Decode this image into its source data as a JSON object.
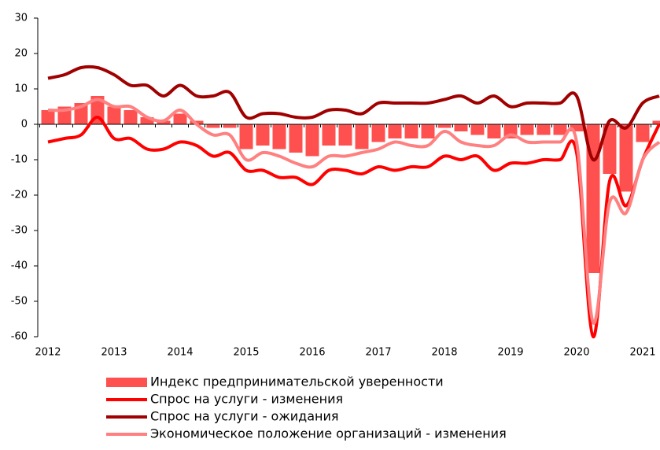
{
  "chart_data": {
    "type": "combo",
    "categories": [
      "2012",
      null,
      null,
      null,
      "2013",
      null,
      null,
      null,
      "2014",
      null,
      null,
      null,
      "2015",
      null,
      null,
      null,
      "2016",
      null,
      null,
      null,
      "2017",
      null,
      null,
      null,
      "2018",
      null,
      null,
      null,
      "2019",
      null,
      null,
      null,
      "2020",
      null,
      null,
      null,
      "2021",
      null
    ],
    "series": [
      {
        "name": "Индекс предпринимательской  уверенности",
        "type": "bar",
        "color": "#ff5050",
        "values": [
          4,
          5,
          6,
          8,
          5,
          4,
          2,
          1,
          3,
          1,
          -1,
          -1,
          -7,
          -6,
          -7,
          -8,
          -9,
          -6,
          -6,
          -7,
          -5,
          -4,
          -4,
          -4,
          -1,
          -2,
          -3,
          -4,
          -4,
          -3,
          -3,
          -3,
          -2,
          -42,
          -14,
          -19,
          -5,
          1
        ]
      },
      {
        "name": "Спрос на услуги - изменения",
        "type": "line",
        "color": "#ff0000",
        "values": [
          -5,
          -4,
          -3,
          2,
          -4,
          -4,
          -7,
          -7,
          -5,
          -6,
          -9,
          -8,
          -13,
          -13,
          -15,
          -15,
          -17,
          -13,
          -13,
          -14,
          -12,
          -13,
          -12,
          -12,
          -9,
          -10,
          -9,
          -13,
          -11,
          -11,
          -10,
          -10,
          -8,
          -60,
          -16,
          -23,
          -10,
          0
        ]
      },
      {
        "name": "Спрос на услуги - ожидания",
        "type": "line",
        "color": "#a00000",
        "values": [
          13,
          14,
          16,
          16,
          14,
          11,
          11,
          8,
          11,
          8,
          8,
          9,
          2,
          3,
          3,
          2,
          2,
          4,
          4,
          3,
          6,
          6,
          6,
          6,
          7,
          8,
          6,
          8,
          5,
          6,
          6,
          6,
          8,
          -10,
          1,
          -1,
          6,
          8
        ]
      },
      {
        "name": "Экономическое положение организаций  - изменения",
        "type": "line",
        "color": "#ff8080",
        "values": [
          4,
          4,
          5,
          7,
          5,
          5,
          2,
          1,
          4,
          0,
          -3,
          -3,
          -10,
          -8,
          -9,
          -11,
          -12,
          -9,
          -9,
          -8,
          -7,
          -5,
          -6,
          -6,
          -2,
          -5,
          -6,
          -6,
          -3,
          -5,
          -5,
          -5,
          -5,
          -56,
          -22,
          -25,
          -10,
          -5
        ]
      }
    ],
    "ylim": [
      -60,
      30
    ],
    "yticks": [
      -60,
      -50,
      -40,
      -30,
      -20,
      -10,
      0,
      10,
      20,
      30
    ]
  }
}
